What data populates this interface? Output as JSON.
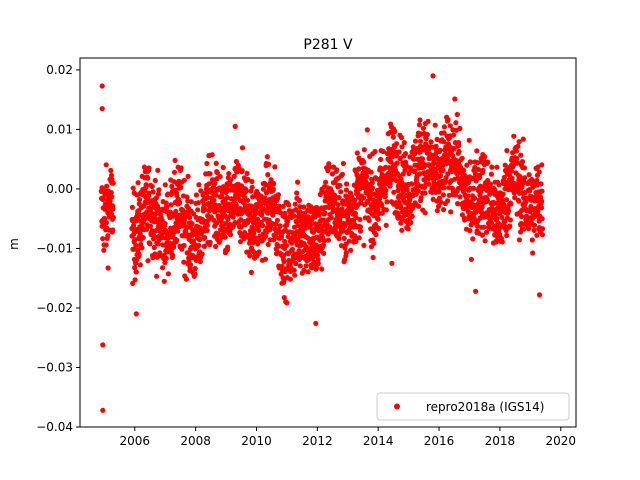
{
  "chart_data": {
    "type": "scatter",
    "title": "P281 V",
    "xlabel": "",
    "ylabel": "m",
    "xlim": [
      2004.2,
      2020.5
    ],
    "ylim": [
      -0.04,
      0.022
    ],
    "xticks": [
      2006,
      2008,
      2010,
      2012,
      2014,
      2016,
      2018,
      2020
    ],
    "yticks": [
      -0.04,
      -0.03,
      -0.02,
      -0.01,
      0.0,
      0.01,
      0.02
    ],
    "ytick_labels": [
      "−0.04",
      "−0.03",
      "−0.02",
      "−0.01",
      "0.00",
      "0.01",
      "0.02"
    ],
    "grid": false,
    "legend_position": "lower-right",
    "series": [
      {
        "name": "repro2018a (IGS14)",
        "color": "#ff0000",
        "marker": "circle",
        "trend": [
          [
            2004.9,
            -0.002
          ],
          [
            2005.2,
            -0.003
          ],
          [
            2005.9,
            -0.006
          ],
          [
            2006.5,
            -0.005
          ],
          [
            2007.0,
            -0.005
          ],
          [
            2007.5,
            -0.006
          ],
          [
            2008.0,
            -0.007
          ],
          [
            2008.5,
            -0.004
          ],
          [
            2009.0,
            -0.003
          ],
          [
            2009.5,
            -0.004
          ],
          [
            2010.0,
            -0.004
          ],
          [
            2010.5,
            -0.005
          ],
          [
            2011.0,
            -0.008
          ],
          [
            2011.5,
            -0.009
          ],
          [
            2012.0,
            -0.006
          ],
          [
            2012.5,
            -0.004
          ],
          [
            2013.0,
            -0.003
          ],
          [
            2013.5,
            -0.002
          ],
          [
            2014.0,
            0.0
          ],
          [
            2014.5,
            0.002
          ],
          [
            2015.0,
            0.002
          ],
          [
            2015.5,
            0.003
          ],
          [
            2016.0,
            0.004
          ],
          [
            2016.5,
            0.003
          ],
          [
            2017.0,
            0.0
          ],
          [
            2017.5,
            -0.003
          ],
          [
            2018.0,
            -0.002
          ],
          [
            2018.5,
            0.0
          ],
          [
            2019.0,
            -0.001
          ],
          [
            2019.4,
            -0.004
          ]
        ],
        "gaps": [
          [
            2005.3,
            2005.9
          ]
        ],
        "outliers": [
          [
            2004.95,
            -0.0372
          ],
          [
            2004.95,
            -0.0262
          ],
          [
            2004.93,
            0.0173
          ],
          [
            2004.93,
            0.0135
          ],
          [
            2006.05,
            -0.021
          ],
          [
            2011.95,
            -0.0226
          ],
          [
            2014.45,
            -0.0125
          ],
          [
            2015.8,
            0.019
          ],
          [
            2009.3,
            0.0105
          ],
          [
            2016.6,
            0.0125
          ],
          [
            2017.2,
            -0.0172
          ],
          [
            2019.3,
            -0.0178
          ]
        ]
      }
    ]
  }
}
